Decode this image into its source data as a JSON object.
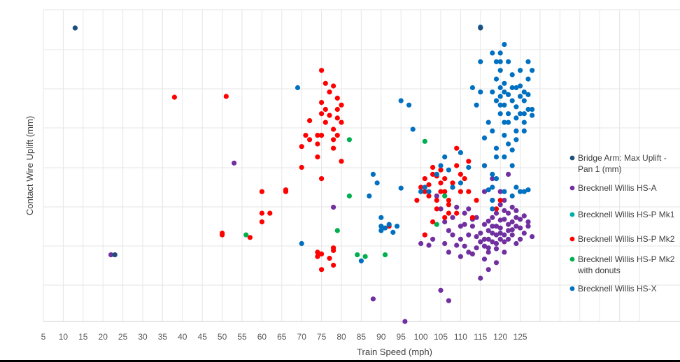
{
  "chart_data": {
    "type": "scatter",
    "title": "",
    "xlabel": "Train Speed (mph)",
    "ylabel": "Contact Wire Uplift (mm)",
    "xlim": [
      5,
      155
    ],
    "x_ticks": [
      5,
      10,
      15,
      20,
      25,
      30,
      35,
      40,
      45,
      50,
      55,
      60,
      65,
      70,
      75,
      80,
      85,
      90,
      95,
      100,
      105,
      110,
      115,
      120,
      125
    ],
    "y_ticks_shown": false,
    "grid": true,
    "legend_position": "right",
    "series": [
      {
        "name": "Bridge Arm: Max Uplift -\nPan 1 (mm)",
        "color": "#1f4e79",
        "points": [
          [
            13,
            339
          ],
          [
            23,
            77
          ],
          [
            115,
            339
          ]
        ]
      },
      {
        "name": "Brecknell Willis HS-A",
        "color": "#7030a0",
        "points": [
          [
            22,
            77
          ],
          [
            53,
            183
          ],
          [
            78,
            132
          ],
          [
            88,
            26
          ],
          [
            96,
            0
          ],
          [
            100,
            90
          ],
          [
            105,
            36
          ],
          [
            107,
            24
          ],
          [
            110,
            75
          ],
          [
            112,
            130
          ],
          [
            114,
            120
          ],
          [
            115,
            50
          ],
          [
            116,
            150
          ],
          [
            117,
            85
          ],
          [
            118,
            165
          ],
          [
            119,
            100
          ],
          [
            120,
            150
          ],
          [
            121,
            92
          ],
          [
            122,
            170
          ],
          [
            123,
            115
          ],
          [
            124,
            128
          ],
          [
            125,
            108
          ],
          [
            126,
            122
          ],
          [
            127,
            110
          ],
          [
            128,
            98
          ],
          [
            113,
            78
          ],
          [
            112,
            100
          ],
          [
            111,
            87
          ],
          [
            116,
            72
          ],
          [
            117,
            60
          ],
          [
            119,
            68
          ],
          [
            121,
            80
          ],
          [
            122,
            105
          ],
          [
            108,
            100
          ],
          [
            109,
            88
          ],
          [
            110,
            110
          ],
          [
            111,
            112
          ],
          [
            113,
            110
          ],
          [
            114,
            98
          ],
          [
            115,
            92
          ],
          [
            116,
            112
          ],
          [
            117,
            105
          ],
          [
            118,
            120
          ],
          [
            119,
            125
          ],
          [
            120,
            117
          ],
          [
            121,
            128
          ],
          [
            122,
            95
          ],
          [
            123,
            100
          ],
          [
            124,
            90
          ],
          [
            125,
            118
          ],
          [
            126,
            102
          ],
          [
            110,
            95
          ],
          [
            112,
            80
          ],
          [
            114,
            85
          ],
          [
            115,
            102
          ],
          [
            116,
            95
          ],
          [
            117,
            80
          ],
          [
            118,
            92
          ],
          [
            119,
            110
          ],
          [
            120,
            95
          ],
          [
            121,
            118
          ],
          [
            122,
            125
          ],
          [
            123,
            132
          ],
          [
            124,
            110
          ],
          [
            125,
            95
          ],
          [
            118,
            140
          ],
          [
            120,
            135
          ],
          [
            121,
            140
          ],
          [
            105,
            130
          ],
          [
            104,
            145
          ],
          [
            103,
            95
          ],
          [
            102,
            88
          ],
          [
            101,
            100
          ],
          [
            107,
            105
          ],
          [
            108,
            120
          ],
          [
            106,
            115
          ],
          [
            109,
            132
          ],
          [
            111,
            125
          ],
          [
            113,
            118
          ],
          [
            117,
            95
          ],
          [
            118,
            102
          ],
          [
            119,
            90
          ],
          [
            120,
            102
          ],
          [
            127,
            115
          ],
          [
            106,
            90
          ],
          [
            107,
            80
          ]
        ],
        "extra_points": [
          [
            115,
            92
          ],
          [
            116,
            87
          ],
          [
            117,
            116
          ],
          [
            118,
            110
          ],
          [
            119,
            84
          ],
          [
            120,
            108
          ],
          [
            121,
            100
          ],
          [
            122,
            112
          ],
          [
            123,
            106
          ],
          [
            124,
            120
          ]
        ]
      },
      {
        "name": "Brecknell Willis HS-P Mk1",
        "color": "#00b0a0",
        "points": []
      },
      {
        "name": "Brecknell Willis HS-P Mk2",
        "color": "#ff0000",
        "points": [
          [
            38,
            259
          ],
          [
            51,
            260
          ],
          [
            50,
            100
          ],
          [
            50,
            102
          ],
          [
            57,
            97
          ],
          [
            60,
            115
          ],
          [
            60,
            125
          ],
          [
            60,
            150
          ],
          [
            62,
            125
          ],
          [
            66,
            150
          ],
          [
            66,
            152
          ],
          [
            70,
            178
          ],
          [
            70,
            202
          ],
          [
            71,
            215
          ],
          [
            72,
            210
          ],
          [
            72,
            232
          ],
          [
            74,
            190
          ],
          [
            74,
            205
          ],
          [
            74,
            215
          ],
          [
            75,
            165
          ],
          [
            75,
            215
          ],
          [
            75,
            240
          ],
          [
            75,
            253
          ],
          [
            75,
            290
          ],
          [
            76,
            275
          ],
          [
            76,
            245
          ],
          [
            76,
            230
          ],
          [
            77,
            265
          ],
          [
            77,
            238
          ],
          [
            78,
            272
          ],
          [
            78,
            222
          ],
          [
            78,
            210
          ],
          [
            78,
            200
          ],
          [
            79,
            215
          ],
          [
            79,
            235
          ],
          [
            79,
            245
          ],
          [
            79,
            258
          ],
          [
            80,
            250
          ],
          [
            80,
            230
          ],
          [
            80,
            185
          ],
          [
            74,
            75
          ],
          [
            74,
            80
          ],
          [
            75,
            60
          ],
          [
            75,
            78
          ],
          [
            77,
            73
          ],
          [
            78,
            65
          ],
          [
            78,
            82
          ],
          [
            78,
            85
          ],
          [
            92,
            110
          ],
          [
            99,
            140
          ],
          [
            100,
            155
          ],
          [
            101,
            150
          ],
          [
            101,
            165
          ],
          [
            102,
            158
          ],
          [
            102,
            145
          ],
          [
            103,
            170
          ],
          [
            103,
            178
          ],
          [
            104,
            168
          ],
          [
            104,
            140
          ],
          [
            104,
            130
          ],
          [
            105,
            150
          ],
          [
            105,
            160
          ],
          [
            105,
            175
          ],
          [
            106,
            165
          ],
          [
            106,
            150
          ],
          [
            107,
            140
          ],
          [
            107,
            125
          ],
          [
            108,
            155
          ],
          [
            108,
            160
          ],
          [
            109,
            180
          ],
          [
            109,
            200
          ],
          [
            110,
            170
          ],
          [
            112,
            185
          ],
          [
            112,
            150
          ],
          [
            113,
            120
          ],
          [
            114,
            140
          ],
          [
            116,
            180
          ],
          [
            119,
            130
          ],
          [
            120,
            140
          ],
          [
            101,
            100
          ],
          [
            103,
            115
          ],
          [
            106,
            120
          ],
          [
            107,
            135
          ],
          [
            109,
            125
          ],
          [
            110,
            150
          ],
          [
            111,
            165
          ]
        ]
      },
      {
        "name": "Brecknell Willis HS-P Mk2\nwith donuts",
        "color": "#00b050",
        "points": [
          [
            56,
            100
          ],
          [
            79,
            105
          ],
          [
            82,
            145
          ],
          [
            82,
            210
          ],
          [
            84,
            77
          ],
          [
            86,
            75
          ],
          [
            91,
            77
          ],
          [
            101,
            208
          ],
          [
            104,
            112
          ],
          [
            106,
            145
          ],
          [
            108,
            155
          ]
        ]
      },
      {
        "name": "Brecknell Willis HS-X",
        "color": "#0070c0",
        "points": [
          [
            13,
            339
          ],
          [
            69,
            270
          ],
          [
            70,
            90
          ],
          [
            85,
            70
          ],
          [
            87,
            145
          ],
          [
            88,
            170
          ],
          [
            89,
            160
          ],
          [
            90,
            110
          ],
          [
            90,
            105
          ],
          [
            90,
            120
          ],
          [
            91,
            108
          ],
          [
            92,
            112
          ],
          [
            93,
            103
          ],
          [
            94,
            110
          ],
          [
            95,
            255
          ],
          [
            95,
            154
          ],
          [
            97,
            250
          ],
          [
            98,
            222
          ],
          [
            100,
            150
          ],
          [
            101,
            155
          ],
          [
            102,
            150
          ],
          [
            104,
            170
          ],
          [
            105,
            180
          ],
          [
            106,
            190
          ],
          [
            107,
            175
          ],
          [
            108,
            155
          ],
          [
            110,
            195
          ],
          [
            110,
            160
          ],
          [
            112,
            178
          ],
          [
            115,
            300
          ],
          [
            115,
            340
          ],
          [
            116,
            180
          ],
          [
            117,
            230
          ],
          [
            117,
            152
          ],
          [
            118,
            140
          ],
          [
            118,
            130
          ],
          [
            118,
            155
          ],
          [
            118,
            170
          ],
          [
            119,
            165
          ],
          [
            119,
            190
          ],
          [
            120,
            300
          ],
          [
            120,
            290
          ],
          [
            120,
            260
          ],
          [
            121,
            250
          ],
          [
            121,
            230
          ],
          [
            121,
            190
          ],
          [
            122,
            205
          ],
          [
            123,
            180
          ],
          [
            124,
            220
          ],
          [
            125,
            240
          ],
          [
            126,
            230
          ],
          [
            127,
            245
          ],
          [
            118,
            310
          ],
          [
            119,
            300
          ],
          [
            120,
            310
          ],
          [
            121,
            320
          ],
          [
            122,
            300
          ],
          [
            123,
            285
          ],
          [
            124,
            270
          ],
          [
            125,
            260
          ],
          [
            126,
            265
          ],
          [
            127,
            280
          ],
          [
            128,
            290
          ],
          [
            119,
            280
          ],
          [
            120,
            270
          ],
          [
            121,
            275
          ],
          [
            122,
            262
          ],
          [
            123,
            255
          ],
          [
            124,
            248
          ],
          [
            125,
            272
          ],
          [
            126,
            255
          ],
          [
            127,
            262
          ],
          [
            128,
            238
          ],
          [
            120,
            250
          ],
          [
            122,
            240
          ],
          [
            124,
            235
          ],
          [
            126,
            240
          ],
          [
            128,
            245
          ],
          [
            119,
            255
          ],
          [
            121,
            265
          ],
          [
            123,
            270
          ],
          [
            125,
            290
          ],
          [
            127,
            300
          ],
          [
            118,
            265
          ],
          [
            120,
            240
          ],
          [
            122,
            230
          ],
          [
            124,
            210
          ],
          [
            126,
            220
          ],
          [
            121,
            215
          ],
          [
            123,
            198
          ],
          [
            119,
            200
          ],
          [
            121,
            150
          ],
          [
            123,
            145
          ],
          [
            124,
            155
          ],
          [
            125,
            150
          ],
          [
            126,
            150
          ],
          [
            127,
            152
          ],
          [
            115,
            265
          ],
          [
            116,
            212
          ],
          [
            118,
            220
          ],
          [
            113,
            270
          ],
          [
            114,
            250
          ]
        ]
      }
    ]
  },
  "legend_marker_colors": [
    "#1f4e79",
    "#7030a0",
    "#00b0a0",
    "#ff0000",
    "#00b050",
    "#0070c0"
  ]
}
